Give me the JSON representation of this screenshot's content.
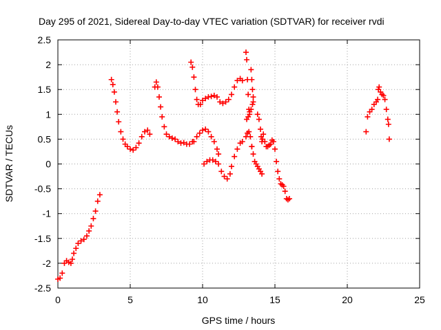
{
  "chart_data": {
    "type": "scatter",
    "title": "Day 295 of 2021, Sidereal Day-to-day VTEC variation (SDTVAR) for receiver rvdi",
    "xlabel": "GPS time / hours",
    "ylabel": "SDTVAR / TECUs",
    "xlim": [
      0,
      25
    ],
    "ylim": [
      -2.5,
      2.5
    ],
    "xticks": [
      "0",
      "5",
      "10",
      "15",
      "20",
      "25"
    ],
    "yticks": [
      "-2.5",
      "-2",
      "-1.5",
      "-1",
      "-0.5",
      "0",
      "0.5",
      "1",
      "1.5",
      "2",
      "2.5"
    ],
    "grid": true,
    "marker": "+",
    "color": "#ff0000",
    "segments": [
      [
        [
          0.0,
          -2.32
        ],
        [
          0.15,
          -2.3
        ],
        [
          0.3,
          -2.2
        ],
        [
          0.45,
          -2.0
        ],
        [
          0.6,
          -1.95
        ],
        [
          0.75,
          -1.98
        ],
        [
          0.9,
          -2.0
        ],
        [
          1.0,
          -1.92
        ],
        [
          1.1,
          -1.8
        ],
        [
          1.25,
          -1.7
        ],
        [
          1.4,
          -1.6
        ],
        [
          1.6,
          -1.55
        ],
        [
          1.8,
          -1.52
        ],
        [
          2.0,
          -1.45
        ],
        [
          2.15,
          -1.35
        ],
        [
          2.3,
          -1.25
        ],
        [
          2.45,
          -1.1
        ],
        [
          2.6,
          -0.95
        ],
        [
          2.75,
          -0.75
        ],
        [
          2.9,
          -0.62
        ]
      ],
      [
        [
          3.7,
          1.7
        ],
        [
          3.8,
          1.6
        ],
        [
          3.9,
          1.45
        ],
        [
          4.0,
          1.25
        ],
        [
          4.1,
          1.05
        ],
        [
          4.2,
          0.85
        ],
        [
          4.35,
          0.65
        ],
        [
          4.5,
          0.5
        ],
        [
          4.65,
          0.4
        ],
        [
          4.8,
          0.35
        ],
        [
          5.0,
          0.3
        ],
        [
          5.2,
          0.28
        ],
        [
          5.4,
          0.33
        ],
        [
          5.6,
          0.42
        ],
        [
          5.8,
          0.55
        ],
        [
          6.0,
          0.65
        ],
        [
          6.2,
          0.68
        ],
        [
          6.35,
          0.6
        ]
      ],
      [
        [
          6.7,
          1.55
        ],
        [
          6.8,
          1.65
        ],
        [
          6.9,
          1.55
        ],
        [
          7.0,
          1.35
        ],
        [
          7.1,
          1.15
        ],
        [
          7.2,
          0.95
        ],
        [
          7.35,
          0.75
        ],
        [
          7.5,
          0.6
        ],
        [
          7.7,
          0.55
        ],
        [
          7.9,
          0.52
        ],
        [
          8.1,
          0.5
        ],
        [
          8.3,
          0.45
        ],
        [
          8.5,
          0.42
        ],
        [
          8.7,
          0.43
        ],
        [
          8.9,
          0.4
        ],
        [
          9.1,
          0.4
        ],
        [
          9.3,
          0.45
        ]
      ],
      [
        [
          9.2,
          2.05
        ],
        [
          9.3,
          1.95
        ],
        [
          9.4,
          1.75
        ],
        [
          9.5,
          1.5
        ],
        [
          9.6,
          1.3
        ],
        [
          9.7,
          1.2
        ],
        [
          9.85,
          1.2
        ],
        [
          10.0,
          1.28
        ],
        [
          10.2,
          1.32
        ],
        [
          10.4,
          1.35
        ],
        [
          10.6,
          1.36
        ],
        [
          10.8,
          1.38
        ],
        [
          11.0,
          1.35
        ],
        [
          11.2,
          1.25
        ],
        [
          11.4,
          1.22
        ],
        [
          11.6,
          1.25
        ],
        [
          11.8,
          1.3
        ],
        [
          12.0,
          1.4
        ],
        [
          12.2,
          1.55
        ],
        [
          12.4,
          1.68
        ],
        [
          12.6,
          1.72
        ],
        [
          12.75,
          1.68
        ]
      ],
      [
        [
          9.4,
          0.45
        ],
        [
          9.6,
          0.55
        ],
        [
          9.8,
          0.62
        ],
        [
          10.0,
          0.68
        ],
        [
          10.2,
          0.7
        ],
        [
          10.4,
          0.65
        ],
        [
          10.6,
          0.55
        ],
        [
          10.8,
          0.45
        ],
        [
          11.0,
          0.3
        ],
        [
          11.1,
          0.2
        ]
      ],
      [
        [
          10.1,
          0.0
        ],
        [
          10.3,
          0.05
        ],
        [
          10.5,
          0.08
        ],
        [
          10.7,
          0.08
        ],
        [
          10.9,
          0.05
        ],
        [
          11.1,
          0.0
        ],
        [
          11.3,
          -0.15
        ],
        [
          11.5,
          -0.25
        ],
        [
          11.7,
          -0.3
        ],
        [
          11.9,
          -0.2
        ],
        [
          12.0,
          -0.05
        ],
        [
          12.2,
          0.15
        ],
        [
          12.4,
          0.3
        ],
        [
          12.6,
          0.42
        ],
        [
          12.75,
          0.45
        ]
      ],
      [
        [
          13.0,
          2.25
        ],
        [
          13.05,
          2.1
        ],
        [
          13.1,
          1.7
        ],
        [
          13.15,
          1.4
        ],
        [
          13.2,
          1.1
        ],
        [
          13.25,
          1.0
        ],
        [
          13.05,
          0.9
        ],
        [
          13.15,
          0.95
        ],
        [
          13.25,
          1.05
        ],
        [
          13.35,
          1.1
        ],
        [
          13.45,
          1.2
        ],
        [
          13.5,
          1.25
        ],
        [
          13.35,
          1.9
        ],
        [
          13.4,
          1.7
        ],
        [
          13.45,
          1.5
        ],
        [
          13.5,
          1.35
        ],
        [
          13.4,
          0.35
        ]
      ],
      [
        [
          13.0,
          0.55
        ],
        [
          13.1,
          0.62
        ],
        [
          13.2,
          0.65
        ],
        [
          13.3,
          0.55
        ],
        [
          13.4,
          0.35
        ],
        [
          13.5,
          0.2
        ],
        [
          13.6,
          0.05
        ],
        [
          13.7,
          0.0
        ],
        [
          13.8,
          -0.05
        ],
        [
          13.9,
          -0.1
        ],
        [
          14.0,
          -0.15
        ],
        [
          14.1,
          -0.2
        ]
      ],
      [
        [
          13.8,
          1.0
        ],
        [
          13.9,
          0.9
        ],
        [
          14.0,
          0.7
        ],
        [
          14.05,
          0.55
        ],
        [
          14.1,
          0.45
        ],
        [
          14.15,
          0.5
        ],
        [
          14.2,
          0.6
        ],
        [
          14.3,
          0.45
        ],
        [
          14.4,
          0.35
        ],
        [
          14.5,
          0.35
        ],
        [
          14.6,
          0.38
        ],
        [
          14.7,
          0.4
        ],
        [
          14.8,
          0.48
        ],
        [
          14.9,
          0.45
        ],
        [
          15.0,
          0.3
        ],
        [
          15.1,
          0.05
        ],
        [
          15.2,
          -0.15
        ],
        [
          15.3,
          -0.3
        ],
        [
          15.4,
          -0.4
        ],
        [
          15.5,
          -0.42
        ],
        [
          15.6,
          -0.45
        ],
        [
          15.7,
          -0.55
        ],
        [
          15.8,
          -0.7
        ],
        [
          15.9,
          -0.72
        ],
        [
          16.0,
          -0.7
        ]
      ],
      [
        [
          21.3,
          0.65
        ],
        [
          21.4,
          0.95
        ],
        [
          21.55,
          1.05
        ],
        [
          21.7,
          1.1
        ],
        [
          21.85,
          1.2
        ],
        [
          22.0,
          1.25
        ],
        [
          22.1,
          1.3
        ],
        [
          22.15,
          1.5
        ],
        [
          22.2,
          1.55
        ],
        [
          22.3,
          1.45
        ],
        [
          22.4,
          1.4
        ],
        [
          22.5,
          1.38
        ],
        [
          22.6,
          1.3
        ],
        [
          22.7,
          1.1
        ],
        [
          22.8,
          0.9
        ],
        [
          22.85,
          0.8
        ],
        [
          22.9,
          0.5
        ]
      ]
    ]
  }
}
